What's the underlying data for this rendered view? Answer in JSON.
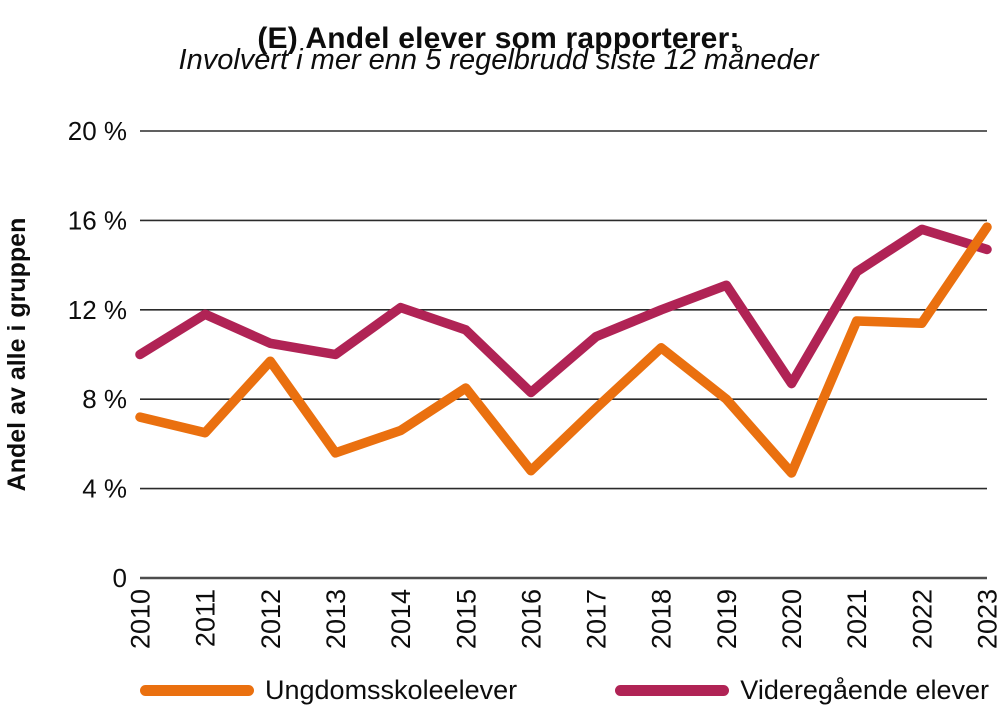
{
  "chart_data": {
    "type": "line",
    "title": "(E) Andel elever som rapporterer:",
    "subtitle": "Involvert i mer enn 5 regelbrudd siste 12 måneder",
    "ylabel": "Andel av alle i gruppen",
    "xlabel": "",
    "x": [
      "2010",
      "2011",
      "2012",
      "2013",
      "2014",
      "2015",
      "2016",
      "2017",
      "2018",
      "2019",
      "2020",
      "2021",
      "2022",
      "2023"
    ],
    "ylim": [
      0,
      20
    ],
    "yticks": [
      {
        "value": 0,
        "label": "0"
      },
      {
        "value": 4,
        "label": "4 %"
      },
      {
        "value": 8,
        "label": "8 %"
      },
      {
        "value": 12,
        "label": "12 %"
      },
      {
        "value": 16,
        "label": "16 %"
      },
      {
        "value": 20,
        "label": "20 %"
      }
    ],
    "grid": "horizontal",
    "legend_position": "bottom",
    "series": [
      {
        "name": "Ungdomsskoleelever",
        "color": "#EA700F",
        "values": [
          7.2,
          6.5,
          9.7,
          5.6,
          6.6,
          8.5,
          4.8,
          7.6,
          10.3,
          8.0,
          4.7,
          11.5,
          11.4,
          15.7
        ]
      },
      {
        "name": "Videregående elever",
        "color": "#B02355",
        "values": [
          10.0,
          11.8,
          10.5,
          10.0,
          12.1,
          11.1,
          8.3,
          10.8,
          12.0,
          13.1,
          8.7,
          13.7,
          15.6,
          14.7
        ]
      }
    ],
    "colors": {
      "gridline": "#2b2b2b",
      "zero_axis": "#4d4d4d",
      "text": "#0d0d0d"
    }
  }
}
